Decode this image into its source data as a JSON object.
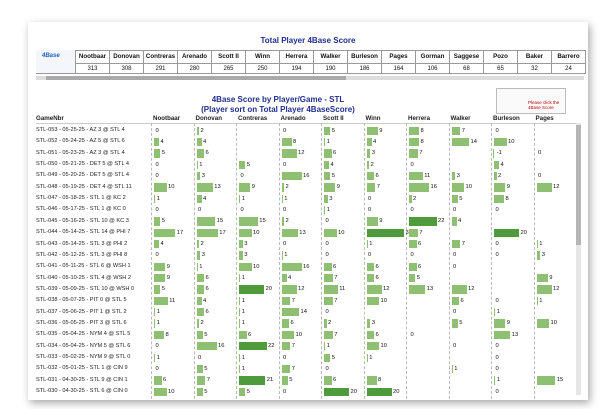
{
  "top_table": {
    "title": "Total Player 4Base Score",
    "logo": "4Base",
    "columns": [
      "Nootbaar",
      "Donovan",
      "Contreras",
      "Arenado",
      "Scott II",
      "Winn",
      "Herrera",
      "Walker",
      "Burleson",
      "Pages",
      "Gorman",
      "Saggese",
      "Pozo",
      "Baker",
      "Barrero"
    ],
    "values": [
      313,
      308,
      291,
      280,
      265,
      250,
      194,
      190,
      186,
      164,
      106,
      68,
      65,
      32,
      24
    ]
  },
  "score_table": {
    "title": "4Base Score by Player/Game - STL",
    "subtitle": "(Player sort on Total Player 4BaseScore)",
    "button_text": "Please click the 4Base Score",
    "row_header": "GameNbr",
    "columns": [
      "Nootbaar",
      "Donovan",
      "Contreras",
      "Arenado",
      "Scott II",
      "Winn",
      "Herrera",
      "Walker",
      "Burleson",
      "Pages"
    ],
    "rows": [
      {
        "game": "STL-053 - 05-25-25 - AZ 3 @ STL 4",
        "scores": [
          0,
          2,
          null,
          0,
          5,
          9,
          8,
          7,
          0,
          null
        ]
      },
      {
        "game": "STL-052 - 05-24-25 - AZ 5 @ STL 6",
        "scores": [
          4,
          4,
          null,
          8,
          1,
          4,
          8,
          14,
          10,
          null
        ]
      },
      {
        "game": "STL-051 - 05-23-25 - AZ 3 @ STL 4",
        "scores": [
          5,
          6,
          null,
          12,
          6,
          3,
          7,
          null,
          -1,
          0
        ]
      },
      {
        "game": "STL-050 - 05-21-25 - DET 5 @ STL 4",
        "scores": [
          0,
          1,
          5,
          0,
          4,
          2,
          0,
          null,
          4,
          null
        ]
      },
      {
        "game": "STL-049 - 05-20-25 - DET 5 @ STL 4",
        "scores": [
          0,
          3,
          0,
          16,
          5,
          6,
          11,
          3,
          2,
          0
        ]
      },
      {
        "game": "STL-048 - 05-19-25 - DET 4 @ STL 11",
        "scores": [
          10,
          13,
          9,
          2,
          9,
          7,
          16,
          10,
          9,
          12
        ]
      },
      {
        "game": "STL-047 - 05-18-25 - STL 1 @ KC 2",
        "scores": [
          1,
          4,
          1,
          1,
          3,
          0,
          2,
          5,
          8,
          null
        ]
      },
      {
        "game": "STL-046 - 05-17-25 - STL 1 @ KC 0",
        "scores": [
          0,
          0,
          0,
          0,
          1,
          0,
          0,
          0,
          0,
          null
        ]
      },
      {
        "game": "STL-045 - 05-16-25 - STL 10 @ KC 3",
        "scores": [
          5,
          15,
          15,
          2,
          0,
          9,
          22,
          4,
          null,
          null
        ]
      },
      {
        "game": "STL-044 - 05-14-25 - STL 14 @ PHI 7",
        "scores": [
          17,
          17,
          10,
          13,
          10,
          30,
          7,
          null,
          20,
          null
        ]
      },
      {
        "game": "STL-043 - 05-14-25 - STL 3 @ PHI 2",
        "scores": [
          4,
          2,
          3,
          0,
          0,
          1,
          6,
          7,
          0,
          1
        ]
      },
      {
        "game": "STL-042 - 05-12-25 - STL 3 @ PHI 8",
        "scores": [
          0,
          3,
          3,
          1,
          0,
          0,
          0,
          0,
          0,
          3
        ]
      },
      {
        "game": "STL-041 - 05-11-25 - STL 6 @ WSH 1",
        "scores": [
          9,
          1,
          10,
          16,
          6,
          6,
          6,
          0,
          null,
          null
        ]
      },
      {
        "game": "STL-040 - 05-10-25 - STL 4 @ WSH 2",
        "scores": [
          9,
          6,
          1,
          4,
          7,
          6,
          5,
          null,
          null,
          9
        ]
      },
      {
        "game": "STL-039 - 05-09-25 - STL 10 @ WSH 0",
        "scores": [
          5,
          6,
          20,
          12,
          11,
          12,
          13,
          12,
          null,
          12
        ]
      },
      {
        "game": "STL-038 - 05-07-25 - PIT 0 @ STL 5",
        "scores": [
          11,
          4,
          1,
          7,
          7,
          10,
          null,
          6,
          0,
          1
        ]
      },
      {
        "game": "STL-037 - 05-06-25 - PIT 1 @ STL 2",
        "scores": [
          1,
          6,
          1,
          14,
          0,
          null,
          null,
          0,
          1,
          null
        ]
      },
      {
        "game": "STL-036 - 05-05-25 - PIT 3 @ STL 6",
        "scores": [
          1,
          2,
          1,
          6,
          2,
          3,
          null,
          5,
          9,
          10
        ]
      },
      {
        "game": "STL-035 - 05-04-25 - NYM 4 @ STL 5",
        "scores": [
          8,
          5,
          6,
          10,
          7,
          6,
          0,
          null,
          13,
          null
        ]
      },
      {
        "game": "STL-034 - 05-04-25 - NYM 5 @ STL 6",
        "scores": [
          0,
          16,
          22,
          7,
          1,
          10,
          null,
          0,
          0,
          null
        ]
      },
      {
        "game": "STL-033 - 05-02-25 - NYM 9 @ STL 0",
        "scores": [
          1,
          0,
          1,
          0,
          5,
          1,
          null,
          null,
          0,
          null
        ]
      },
      {
        "game": "STL-032 - 05-01-25 - STL 1 @ CIN 9",
        "scores": [
          0,
          5,
          1,
          7,
          0,
          null,
          null,
          1,
          0,
          null
        ]
      },
      {
        "game": "STL-031 - 04-30-25 - STL 9 @ CIN 1",
        "scores": [
          6,
          7,
          21,
          5,
          6,
          8,
          null,
          null,
          1,
          15
        ]
      },
      {
        "game": "STL-030 - 04-30-25 - STL 6 @ CIN 0",
        "scores": [
          10,
          5,
          5,
          0,
          20,
          20,
          null,
          null,
          0,
          null
        ]
      }
    ]
  }
}
